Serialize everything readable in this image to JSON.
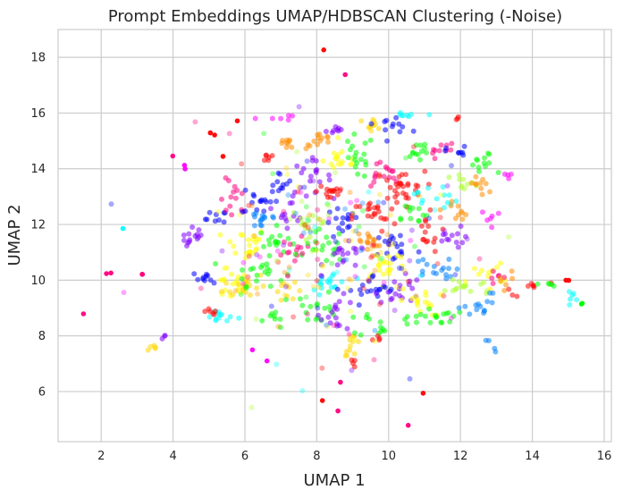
{
  "chart_data": {
    "type": "scatter",
    "title": "Prompt Embeddings UMAP/HDBSCAN Clustering (-Noise)",
    "xlabel": "UMAP 1",
    "ylabel": "UMAP 2",
    "xlim": [
      0.8,
      16.2
    ],
    "ylim": [
      4.2,
      19.0
    ],
    "xticks": [
      2,
      4,
      6,
      8,
      10,
      12,
      14,
      16
    ],
    "yticks": [
      6,
      8,
      10,
      12,
      14,
      16,
      18
    ],
    "grid": true,
    "legend": "none",
    "palette": [
      "#ff0000",
      "#ff0080",
      "#ff00ff",
      "#ff8c00",
      "#ffd700",
      "#ffff00",
      "#adff2f",
      "#00ff00",
      "#00ffff",
      "#0080ff",
      "#0000ff",
      "#8000ff"
    ],
    "clusters": [
      {
        "cx": 8.2,
        "cy": 18.25,
        "sx": 0.02,
        "sy": 0.02,
        "n": 1,
        "color": "#ff0000"
      },
      {
        "cx": 8.8,
        "cy": 17.35,
        "sx": 0.02,
        "sy": 0.02,
        "n": 1,
        "color": "#ff0080"
      },
      {
        "cx": 1.5,
        "cy": 8.8,
        "sx": 0.02,
        "sy": 0.02,
        "n": 1,
        "color": "#ff0080"
      },
      {
        "cx": 2.6,
        "cy": 11.85,
        "sx": 0.02,
        "sy": 0.02,
        "n": 1,
        "color": "#00ffff"
      },
      {
        "cx": 2.25,
        "cy": 10.25,
        "sx": 0.05,
        "sy": 0.03,
        "n": 2,
        "color": "#ff0080"
      },
      {
        "cx": 3.2,
        "cy": 10.2,
        "sx": 0.05,
        "sy": 0.03,
        "n": 2,
        "color": "#ff0080"
      },
      {
        "cx": 3.4,
        "cy": 7.6,
        "sx": 0.12,
        "sy": 0.08,
        "n": 5,
        "color": "#ffd700"
      },
      {
        "cx": 3.7,
        "cy": 7.95,
        "sx": 0.06,
        "sy": 0.05,
        "n": 3,
        "color": "#8000ff"
      },
      {
        "cx": 4.0,
        "cy": 14.45,
        "sx": 0.03,
        "sy": 0.03,
        "n": 1,
        "color": "#ff0080"
      },
      {
        "cx": 4.35,
        "cy": 14.1,
        "sx": 0.05,
        "sy": 0.04,
        "n": 2,
        "color": "#ff00ff"
      },
      {
        "cx": 5.1,
        "cy": 15.3,
        "sx": 0.05,
        "sy": 0.05,
        "n": 2,
        "color": "#ff0000"
      },
      {
        "cx": 5.4,
        "cy": 14.5,
        "sx": 0.03,
        "sy": 0.03,
        "n": 1,
        "color": "#ff0000"
      },
      {
        "cx": 4.6,
        "cy": 11.5,
        "sx": 0.18,
        "sy": 0.2,
        "n": 14,
        "color": "#8000ff"
      },
      {
        "cx": 5.2,
        "cy": 12.2,
        "sx": 0.15,
        "sy": 0.15,
        "n": 9,
        "color": "#0000ff"
      },
      {
        "cx": 5.0,
        "cy": 10.1,
        "sx": 0.2,
        "sy": 0.1,
        "n": 10,
        "color": "#0000ff"
      },
      {
        "cx": 5.6,
        "cy": 9.8,
        "sx": 0.25,
        "sy": 0.25,
        "n": 18,
        "color": "#ffff00"
      },
      {
        "cx": 5.3,
        "cy": 8.7,
        "sx": 0.25,
        "sy": 0.12,
        "n": 12,
        "color": "#00ffff"
      },
      {
        "cx": 5.0,
        "cy": 8.8,
        "sx": 0.12,
        "sy": 0.1,
        "n": 6,
        "color": "#ff0000"
      },
      {
        "cx": 5.7,
        "cy": 12.8,
        "sx": 0.2,
        "sy": 0.4,
        "n": 14,
        "color": "#ff0080"
      },
      {
        "cx": 6.4,
        "cy": 12.9,
        "sx": 0.25,
        "sy": 0.3,
        "n": 16,
        "color": "#0000ff"
      },
      {
        "cx": 6.0,
        "cy": 11.3,
        "sx": 0.3,
        "sy": 0.3,
        "n": 22,
        "color": "#ffff00"
      },
      {
        "cx": 6.5,
        "cy": 12.2,
        "sx": 0.25,
        "sy": 0.2,
        "n": 14,
        "color": "#0080ff"
      },
      {
        "cx": 6.0,
        "cy": 9.8,
        "sx": 0.3,
        "sy": 0.25,
        "n": 18,
        "color": "#ffd700"
      },
      {
        "cx": 6.4,
        "cy": 10.3,
        "sx": 0.35,
        "sy": 0.25,
        "n": 20,
        "color": "#00ff00"
      },
      {
        "cx": 6.9,
        "cy": 11.4,
        "sx": 0.25,
        "sy": 0.25,
        "n": 16,
        "color": "#00ff00"
      },
      {
        "cx": 6.6,
        "cy": 14.4,
        "sx": 0.15,
        "sy": 0.1,
        "n": 6,
        "color": "#ff0000"
      },
      {
        "cx": 6.8,
        "cy": 15.85,
        "sx": 0.25,
        "sy": 0.06,
        "n": 6,
        "color": "#ff00ff"
      },
      {
        "cx": 7.2,
        "cy": 14.9,
        "sx": 0.2,
        "sy": 0.15,
        "n": 10,
        "color": "#ff8c00"
      },
      {
        "cx": 7.3,
        "cy": 12.5,
        "sx": 0.2,
        "sy": 0.3,
        "n": 14,
        "color": "#8000ff"
      },
      {
        "cx": 7.0,
        "cy": 13.5,
        "sx": 0.15,
        "sy": 0.2,
        "n": 10,
        "color": "#0000ff"
      },
      {
        "cx": 7.4,
        "cy": 11.0,
        "sx": 0.2,
        "sy": 0.25,
        "n": 14,
        "color": "#ff0080"
      },
      {
        "cx": 7.8,
        "cy": 12.1,
        "sx": 0.25,
        "sy": 0.25,
        "n": 16,
        "color": "#adff2f"
      },
      {
        "cx": 7.2,
        "cy": 9.6,
        "sx": 0.2,
        "sy": 0.15,
        "n": 10,
        "color": "#ffd700"
      },
      {
        "cx": 6.8,
        "cy": 8.6,
        "sx": 0.2,
        "sy": 0.2,
        "n": 8,
        "color": "#00ff00"
      },
      {
        "cx": 6.6,
        "cy": 7.1,
        "sx": 0.03,
        "sy": 0.03,
        "n": 1,
        "color": "#ff00ff"
      },
      {
        "cx": 6.2,
        "cy": 7.55,
        "sx": 0.03,
        "sy": 0.03,
        "n": 1,
        "color": "#ff00ff"
      },
      {
        "cx": 7.8,
        "cy": 13.7,
        "sx": 0.3,
        "sy": 0.3,
        "n": 18,
        "color": "#8000ff"
      },
      {
        "cx": 8.1,
        "cy": 15.0,
        "sx": 0.2,
        "sy": 0.15,
        "n": 12,
        "color": "#ff8c00"
      },
      {
        "cx": 8.5,
        "cy": 15.4,
        "sx": 0.15,
        "sy": 0.1,
        "n": 8,
        "color": "#8000ff"
      },
      {
        "cx": 8.4,
        "cy": 13.2,
        "sx": 0.2,
        "sy": 0.2,
        "n": 14,
        "color": "#ff0000"
      },
      {
        "cx": 8.7,
        "cy": 14.3,
        "sx": 0.25,
        "sy": 0.25,
        "n": 16,
        "color": "#ffff00"
      },
      {
        "cx": 9.1,
        "cy": 14.4,
        "sx": 0.25,
        "sy": 0.4,
        "n": 18,
        "color": "#00ff00"
      },
      {
        "cx": 8.7,
        "cy": 12.0,
        "sx": 0.25,
        "sy": 0.3,
        "n": 16,
        "color": "#0000ff"
      },
      {
        "cx": 8.2,
        "cy": 11.2,
        "sx": 0.3,
        "sy": 0.3,
        "n": 18,
        "color": "#00ff00"
      },
      {
        "cx": 8.8,
        "cy": 10.8,
        "sx": 0.3,
        "sy": 0.25,
        "n": 18,
        "color": "#8000ff"
      },
      {
        "cx": 8.4,
        "cy": 9.9,
        "sx": 0.3,
        "sy": 0.25,
        "n": 18,
        "color": "#00ffff"
      },
      {
        "cx": 8.0,
        "cy": 9.0,
        "sx": 0.3,
        "sy": 0.3,
        "n": 16,
        "color": "#00ff00"
      },
      {
        "cx": 8.6,
        "cy": 8.8,
        "sx": 0.25,
        "sy": 0.3,
        "n": 16,
        "color": "#8000ff"
      },
      {
        "cx": 9.0,
        "cy": 7.7,
        "sx": 0.12,
        "sy": 0.2,
        "n": 12,
        "color": "#ffd700"
      },
      {
        "cx": 9.0,
        "cy": 7.0,
        "sx": 0.04,
        "sy": 0.2,
        "n": 4,
        "color": "#ff0000"
      },
      {
        "cx": 9.5,
        "cy": 15.6,
        "sx": 0.2,
        "sy": 0.1,
        "n": 10,
        "color": "#ffd700"
      },
      {
        "cx": 10.1,
        "cy": 15.6,
        "sx": 0.25,
        "sy": 0.15,
        "n": 12,
        "color": "#0000ff"
      },
      {
        "cx": 10.5,
        "cy": 15.9,
        "sx": 0.2,
        "sy": 0.05,
        "n": 8,
        "color": "#00ffff"
      },
      {
        "cx": 9.8,
        "cy": 13.8,
        "sx": 0.25,
        "sy": 0.25,
        "n": 16,
        "color": "#ff0080"
      },
      {
        "cx": 10.3,
        "cy": 13.3,
        "sx": 0.35,
        "sy": 0.3,
        "n": 30,
        "color": "#ff0000"
      },
      {
        "cx": 9.6,
        "cy": 12.3,
        "sx": 0.3,
        "sy": 0.3,
        "n": 22,
        "color": "#ff0000"
      },
      {
        "cx": 9.5,
        "cy": 11.4,
        "sx": 0.3,
        "sy": 0.3,
        "n": 18,
        "color": "#ff8c00"
      },
      {
        "cx": 10.2,
        "cy": 11.2,
        "sx": 0.3,
        "sy": 0.3,
        "n": 18,
        "color": "#0000ff"
      },
      {
        "cx": 9.9,
        "cy": 10.6,
        "sx": 0.3,
        "sy": 0.3,
        "n": 22,
        "color": "#ffff00"
      },
      {
        "cx": 9.6,
        "cy": 9.6,
        "sx": 0.35,
        "sy": 0.3,
        "n": 20,
        "color": "#0000ff"
      },
      {
        "cx": 10.3,
        "cy": 9.7,
        "sx": 0.3,
        "sy": 0.3,
        "n": 18,
        "color": "#8000ff"
      },
      {
        "cx": 9.8,
        "cy": 8.4,
        "sx": 0.3,
        "sy": 0.25,
        "n": 14,
        "color": "#00ff00"
      },
      {
        "cx": 9.7,
        "cy": 7.95,
        "sx": 0.1,
        "sy": 0.05,
        "n": 4,
        "color": "#ff0000"
      },
      {
        "cx": 10.6,
        "cy": 12.4,
        "sx": 0.25,
        "sy": 0.2,
        "n": 12,
        "color": "#00ff00"
      },
      {
        "cx": 10.8,
        "cy": 14.6,
        "sx": 0.2,
        "sy": 0.25,
        "n": 12,
        "color": "#00ff00"
      },
      {
        "cx": 11.0,
        "cy": 11.7,
        "sx": 0.25,
        "sy": 0.35,
        "n": 14,
        "color": "#ff0000"
      },
      {
        "cx": 11.2,
        "cy": 10.3,
        "sx": 0.3,
        "sy": 0.25,
        "n": 16,
        "color": "#0080ff"
      },
      {
        "cx": 10.9,
        "cy": 9.2,
        "sx": 0.3,
        "sy": 0.25,
        "n": 18,
        "color": "#ffff00"
      },
      {
        "cx": 11.2,
        "cy": 8.7,
        "sx": 0.35,
        "sy": 0.15,
        "n": 18,
        "color": "#00ff00"
      },
      {
        "cx": 11.3,
        "cy": 13.0,
        "sx": 0.3,
        "sy": 0.25,
        "n": 14,
        "color": "#00ffff"
      },
      {
        "cx": 11.4,
        "cy": 14.7,
        "sx": 0.25,
        "sy": 0.15,
        "n": 10,
        "color": "#ff0080"
      },
      {
        "cx": 11.9,
        "cy": 14.6,
        "sx": 0.15,
        "sy": 0.1,
        "n": 8,
        "color": "#0000ff"
      },
      {
        "cx": 11.9,
        "cy": 15.8,
        "sx": 0.08,
        "sy": 0.06,
        "n": 3,
        "color": "#ff0000"
      },
      {
        "cx": 11.8,
        "cy": 11.4,
        "sx": 0.25,
        "sy": 0.25,
        "n": 12,
        "color": "#8000ff"
      },
      {
        "cx": 12.0,
        "cy": 12.5,
        "sx": 0.25,
        "sy": 0.2,
        "n": 10,
        "color": "#ff8c00"
      },
      {
        "cx": 12.1,
        "cy": 13.4,
        "sx": 0.2,
        "sy": 0.2,
        "n": 10,
        "color": "#adff2f"
      },
      {
        "cx": 12.6,
        "cy": 14.1,
        "sx": 0.2,
        "sy": 0.25,
        "n": 12,
        "color": "#00ff00"
      },
      {
        "cx": 12.6,
        "cy": 13.4,
        "sx": 0.2,
        "sy": 0.2,
        "n": 10,
        "color": "#ff8c00"
      },
      {
        "cx": 12.2,
        "cy": 9.8,
        "sx": 0.4,
        "sy": 0.2,
        "n": 16,
        "color": "#adff2f"
      },
      {
        "cx": 12.7,
        "cy": 10.2,
        "sx": 0.25,
        "sy": 0.2,
        "n": 12,
        "color": "#ffff00"
      },
      {
        "cx": 12.4,
        "cy": 9.0,
        "sx": 0.25,
        "sy": 0.1,
        "n": 8,
        "color": "#0080ff"
      },
      {
        "cx": 12.9,
        "cy": 12.2,
        "sx": 0.15,
        "sy": 0.2,
        "n": 6,
        "color": "#ff00ff"
      },
      {
        "cx": 13.0,
        "cy": 10.2,
        "sx": 0.15,
        "sy": 0.15,
        "n": 6,
        "color": "#ff0080"
      },
      {
        "cx": 12.8,
        "cy": 9.2,
        "sx": 0.1,
        "sy": 0.2,
        "n": 6,
        "color": "#0080ff"
      },
      {
        "cx": 12.9,
        "cy": 7.75,
        "sx": 0.1,
        "sy": 0.2,
        "n": 4,
        "color": "#0080ff"
      },
      {
        "cx": 13.3,
        "cy": 13.75,
        "sx": 0.12,
        "sy": 0.06,
        "n": 4,
        "color": "#ff00ff"
      },
      {
        "cx": 13.2,
        "cy": 10.0,
        "sx": 0.15,
        "sy": 0.2,
        "n": 6,
        "color": "#ff8c00"
      },
      {
        "cx": 13.4,
        "cy": 9.5,
        "sx": 0.08,
        "sy": 0.08,
        "n": 3,
        "color": "#ff0000"
      },
      {
        "cx": 14.0,
        "cy": 9.8,
        "sx": 0.2,
        "sy": 0.08,
        "n": 6,
        "color": "#ff0000"
      },
      {
        "cx": 14.45,
        "cy": 9.8,
        "sx": 0.1,
        "sy": 0.15,
        "n": 5,
        "color": "#00ff00"
      },
      {
        "cx": 15.0,
        "cy": 10.0,
        "sx": 0.05,
        "sy": 0.03,
        "n": 2,
        "color": "#ff0000"
      },
      {
        "cx": 15.0,
        "cy": 9.4,
        "sx": 0.25,
        "sy": 0.12,
        "n": 6,
        "color": "#00ffff"
      },
      {
        "cx": 15.4,
        "cy": 9.15,
        "sx": 0.05,
        "sy": 0.03,
        "n": 2,
        "color": "#00ff00"
      },
      {
        "cx": 8.15,
        "cy": 5.7,
        "sx": 0.03,
        "sy": 0.03,
        "n": 1,
        "color": "#ff0000"
      },
      {
        "cx": 8.65,
        "cy": 6.35,
        "sx": 0.03,
        "sy": 0.03,
        "n": 1,
        "color": "#ff0080"
      },
      {
        "cx": 8.6,
        "cy": 5.3,
        "sx": 0.03,
        "sy": 0.03,
        "n": 1,
        "color": "#ff0080"
      },
      {
        "cx": 10.95,
        "cy": 6.0,
        "sx": 0.03,
        "sy": 0.03,
        "n": 1,
        "color": "#ff0000"
      },
      {
        "cx": 10.55,
        "cy": 4.8,
        "sx": 0.03,
        "sy": 0.03,
        "n": 1,
        "color": "#ff0080"
      },
      {
        "cx": 5.8,
        "cy": 15.7,
        "sx": 0.03,
        "sy": 0.03,
        "n": 1,
        "color": "#ff0000"
      },
      {
        "cx": 8.6,
        "cy": 11.0,
        "sx": 1.9,
        "sy": 1.9,
        "n": 170,
        "color": "mixed"
      }
    ]
  }
}
